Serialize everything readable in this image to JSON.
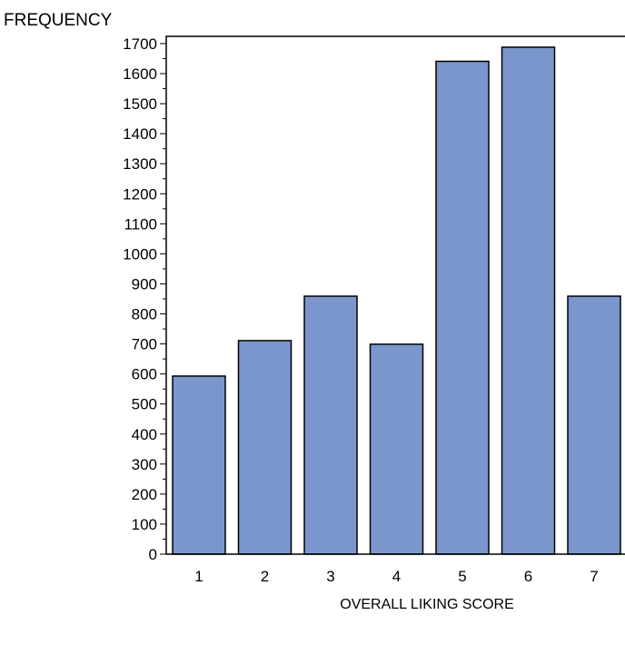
{
  "chart_data": {
    "type": "bar",
    "title": "",
    "ylabel": "FREQUENCY",
    "xlabel": "OVERALL LIKING SCORE",
    "categories": [
      "1",
      "2",
      "3",
      "4",
      "5",
      "6",
      "7"
    ],
    "values": [
      593,
      711,
      859,
      699,
      1641,
      1688,
      859
    ],
    "ylim": [
      0,
      1750
    ],
    "yticks": [
      0,
      100,
      200,
      300,
      400,
      500,
      600,
      700,
      800,
      900,
      1000,
      1100,
      1200,
      1300,
      1400,
      1500,
      1600,
      1700
    ],
    "minor_tick_step": 50,
    "grid": false,
    "legend": "none",
    "bar_color": "#7b96cc",
    "bar_outline": "#000000",
    "axis_color": "#000000",
    "text_color": "#000000"
  }
}
